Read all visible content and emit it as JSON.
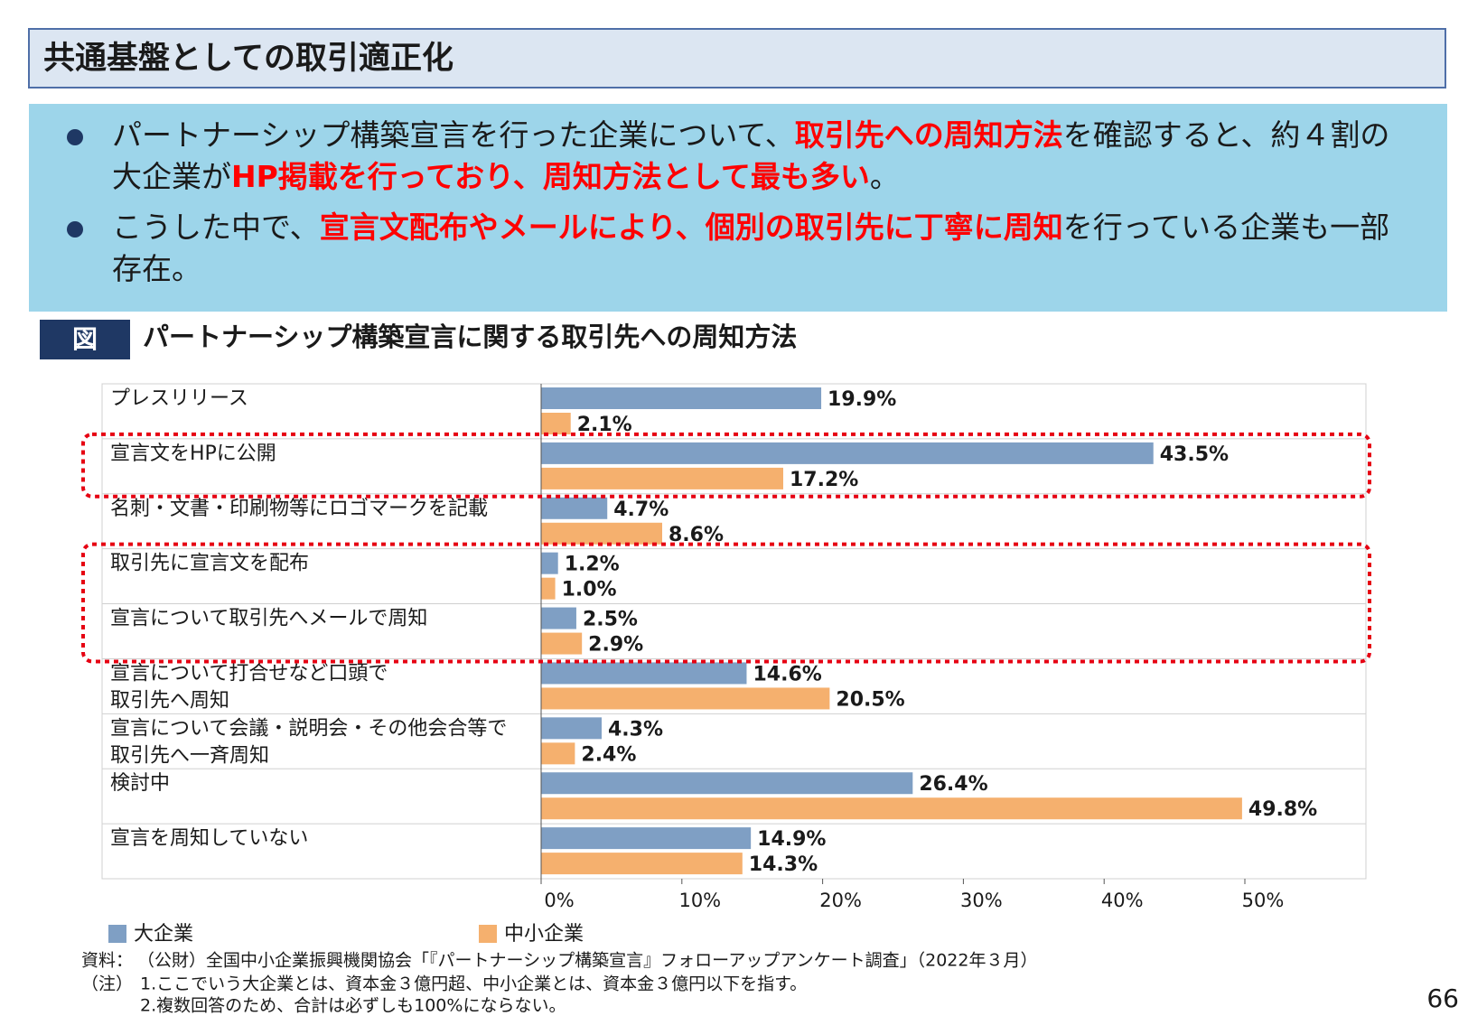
{
  "header": {
    "title": "共通基盤としての取引適正化"
  },
  "bullets": [
    [
      {
        "text": "パートナーシップ構築宣言を行った企業について、",
        "color": "#1a1a1a"
      },
      {
        "text": "取引先への周知方法",
        "color": "#ff0000"
      },
      {
        "text": "を確認すると、約４割の大企業が",
        "color": "#1a1a1a"
      },
      {
        "text": "HP掲載を行っており、周知方法として最も多い",
        "color": "#ff0000"
      },
      {
        "text": "。",
        "color": "#1a1a1a"
      }
    ],
    [
      {
        "text": "こうした中で、",
        "color": "#1a1a1a"
      },
      {
        "text": "宣言文配布やメールにより、個別の取引先に丁寧に周知",
        "color": "#ff0000"
      },
      {
        "text": "を行っている企業も一部存在。",
        "color": "#1a1a1a"
      }
    ]
  ],
  "figure": {
    "label": "図",
    "title": "パートナーシップ構築宣言に関する取引先への周知方法"
  },
  "chart_data": {
    "type": "barh",
    "categories": [
      [
        "プレスリリース"
      ],
      [
        "宣言文をHPに公開"
      ],
      [
        "名刺・文書・印刷物等にロゴマークを記載"
      ],
      [
        "取引先に宣言文を配布"
      ],
      [
        "宣言について取引先へメールで周知"
      ],
      [
        "宣言について打合せなど口頭で",
        "取引先へ周知"
      ],
      [
        "宣言について会議・説明会・その他会合等で",
        "取引先へ一斉周知"
      ],
      [
        "検討中"
      ],
      [
        "宣言を周知していない"
      ]
    ],
    "series": [
      {
        "name": "大企業",
        "color": "#7f9fc4",
        "values": [
          19.9,
          43.5,
          4.7,
          1.2,
          2.5,
          14.6,
          4.3,
          26.4,
          14.9
        ],
        "value_labels": [
          "19.9%",
          "43.5%",
          "4.7%",
          "1.2%",
          "2.5%",
          "14.6%",
          "4.3%",
          "26.4%",
          "14.9%"
        ]
      },
      {
        "name": "中小企業",
        "color": "#f5b06e",
        "values": [
          2.1,
          17.2,
          8.6,
          1.0,
          2.9,
          20.5,
          2.4,
          49.8,
          14.3
        ],
        "value_labels": [
          "2.1%",
          "17.2%",
          "8.6%",
          "1.0%",
          "2.9%",
          "20.5%",
          "2.4%",
          "49.8%",
          "14.3%"
        ]
      }
    ],
    "xlim": [
      0,
      58.6
    ],
    "xticks": [
      {
        "value": 0,
        "label": "0%"
      },
      {
        "value": 10,
        "label": "10%"
      },
      {
        "value": 20,
        "label": "20%"
      },
      {
        "value": 30,
        "label": "30%"
      },
      {
        "value": 40,
        "label": "40%"
      },
      {
        "value": 50,
        "label": "50%"
      }
    ]
  },
  "notes": {
    "source_label": "資料：",
    "source": "（公財）全国中小企業振興機関協会「『パートナーシップ構築宣言』フォローアップアンケート調査」（2022年３月）",
    "note_label": "（注）",
    "items": [
      "1.ここでいう大企業とは、資本金３億円超、中小企業とは、資本金３億円以下を指す。",
      "2.複数回答のため、合計は必ずしも100%にならない。"
    ]
  },
  "page_number": "66"
}
